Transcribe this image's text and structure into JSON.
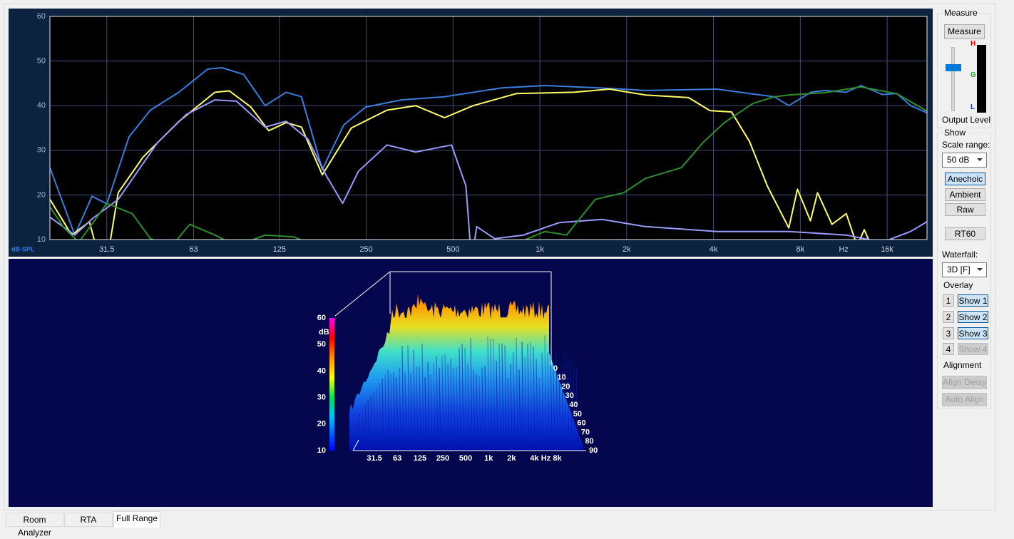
{
  "chart_data": [
    {
      "type": "line",
      "ylabel": "dB-SPL",
      "xlabel": "Hz",
      "xscale": "log",
      "xlim": [
        20,
        22000
      ],
      "ylim": [
        10,
        60
      ],
      "yticks": [
        10,
        20,
        30,
        40,
        50,
        60
      ],
      "xticks": [
        31.5,
        63,
        125,
        250,
        500,
        {
          "value": 1000,
          "label": "1k"
        },
        {
          "value": 2000,
          "label": "2k"
        },
        {
          "value": 4000,
          "label": "4k"
        },
        {
          "value": 8000,
          "label": "8k"
        },
        {
          "value": 16000,
          "label": "16k"
        }
      ],
      "grid": true,
      "series": [
        {
          "color": "#3b7ddb",
          "x": [
            20,
            24.4,
            28,
            31.5,
            37.6,
            44.6,
            56,
            70.5,
            79,
            94,
            111.5,
            132,
            149,
            176,
            209,
            249,
            331,
            467,
            739,
            1041,
            1600,
            2323,
            4120,
            5480,
            6500,
            7300,
            8700,
            9700,
            11500,
            13000,
            15400,
            17300,
            19300,
            22000
          ],
          "values": [
            26.1,
            11,
            19.7,
            18,
            33,
            39,
            43,
            48.2,
            48.5,
            47,
            40,
            43,
            42,
            25.7,
            35.7,
            39.7,
            41.3,
            42,
            44,
            44.5,
            44,
            43.4,
            43.7,
            42.6,
            42,
            40,
            43,
            43.4,
            43,
            44.5,
            42.5,
            42.7,
            40,
            38.4
          ]
        },
        {
          "color": "#ffff66",
          "x": [
            20,
            23.8,
            27.4,
            29.9,
            31.5,
            34.5,
            42.1,
            56.1,
            74.7,
            83.8,
            99.5,
            114.8,
            132,
            149,
            176,
            222,
            295,
            371,
            467,
            587,
            828,
            1310,
            1744,
            2323,
            3275,
            3889,
            4619,
            5330,
            6150,
            7300,
            7820,
            8670,
            9180,
            10300,
            11550,
            12590,
            13330,
            14100,
            22000
          ],
          "values": [
            19,
            11,
            14,
            5,
            5,
            20.5,
            28.5,
            36.5,
            43,
            43.3,
            39.7,
            34.4,
            36.2,
            35.2,
            24.5,
            35,
            39,
            40,
            37.3,
            40,
            42.7,
            43,
            43.7,
            42.4,
            41.8,
            38.9,
            38.6,
            32,
            22,
            12.6,
            21.3,
            14.2,
            20.5,
            13.4,
            15.8,
            8.6,
            12.2,
            8.6,
            5
          ]
        },
        {
          "color": "#9a9aff",
          "x": [
            20,
            24.4,
            28.2,
            34.5,
            47.2,
            59.4,
            74.7,
            88.7,
            111.5,
            132,
            157,
            181,
            207,
            235,
            295,
            371,
            494,
            554,
            580,
            604,
            697,
            877,
            1168,
            1647,
            2323,
            4120,
            7300,
            11550,
            15400,
            19300,
            22000
          ],
          "values": [
            15,
            11,
            14.8,
            19,
            31.7,
            38,
            41.3,
            41,
            35.2,
            36.5,
            32.5,
            24.5,
            18.1,
            25.3,
            31.2,
            29.6,
            31.2,
            22,
            5,
            12.9,
            10.2,
            11,
            13.8,
            14.5,
            12.9,
            11.8,
            11.8,
            11,
            9.4,
            11.8,
            14
          ]
        },
        {
          "color": "#2d8f2d",
          "x": [
            20,
            22.4,
            25.2,
            31.5,
            38.6,
            44.6,
            53,
            61.1,
            74.7,
            88.7,
            111.5,
            140,
            166.6,
            739,
            1041,
            1237,
            1556,
            1956,
            2323,
            3094,
            3672,
            4362,
            5484,
            6512,
            7301,
            9727,
            12950,
            17250,
            22000
          ],
          "values": [
            17.3,
            12.6,
            9.4,
            18.1,
            15.8,
            10.2,
            8.6,
            13.4,
            11,
            8.6,
            11,
            10.6,
            8.6,
            7.8,
            11.8,
            11,
            19,
            20.5,
            23.7,
            26.1,
            31.7,
            36.2,
            40.5,
            42,
            42.4,
            42.9,
            44.2,
            42.7,
            38.8
          ]
        }
      ]
    },
    {
      "type": "waterfall",
      "zlabel": "dB",
      "zlim": [
        10,
        60
      ],
      "zticks": [
        10,
        20,
        30,
        40,
        50,
        60
      ],
      "xlabel": "Hz",
      "xscale": "log",
      "xlim": [
        20,
        20000
      ],
      "xticks": [
        31.5,
        63,
        125,
        250,
        500,
        {
          "value": 1000,
          "label": "1k"
        },
        {
          "value": 2000,
          "label": "2k"
        },
        {
          "value": 4000,
          "label": "4k"
        },
        {
          "value": 8000,
          "label": "8k"
        }
      ],
      "depth_lim": [
        0,
        90
      ],
      "depth_ticks": [
        0,
        10,
        20,
        30,
        40,
        50,
        60,
        70,
        80,
        90
      ]
    }
  ],
  "controls": {
    "measure_group": "Measure",
    "measure_button": "Measure",
    "meter_labels": [
      "H",
      "G",
      "L"
    ],
    "output_level": "Output Level",
    "show_group": "Show",
    "scale_range_label": "Scale range:",
    "scale_range_value": "50 dB",
    "view_buttons": [
      "Anechoic",
      "Ambient",
      "Raw"
    ],
    "rt60": "RT60",
    "waterfall_label": "Waterfall:",
    "waterfall_value": "3D [F]",
    "overlay_group": "Overlay",
    "overlays": [
      {
        "number": "1",
        "button": "Show 1"
      },
      {
        "number": "2",
        "button": "Show 2"
      },
      {
        "number": "3",
        "button": "Show 3"
      },
      {
        "number": "4",
        "button": "Show 4"
      }
    ],
    "alignment_group": "Alignment",
    "align_buttons": [
      "Align Delay",
      "Auto Align"
    ]
  },
  "tabs": [
    "Room Analyzer",
    "RTA",
    "Full Range"
  ]
}
